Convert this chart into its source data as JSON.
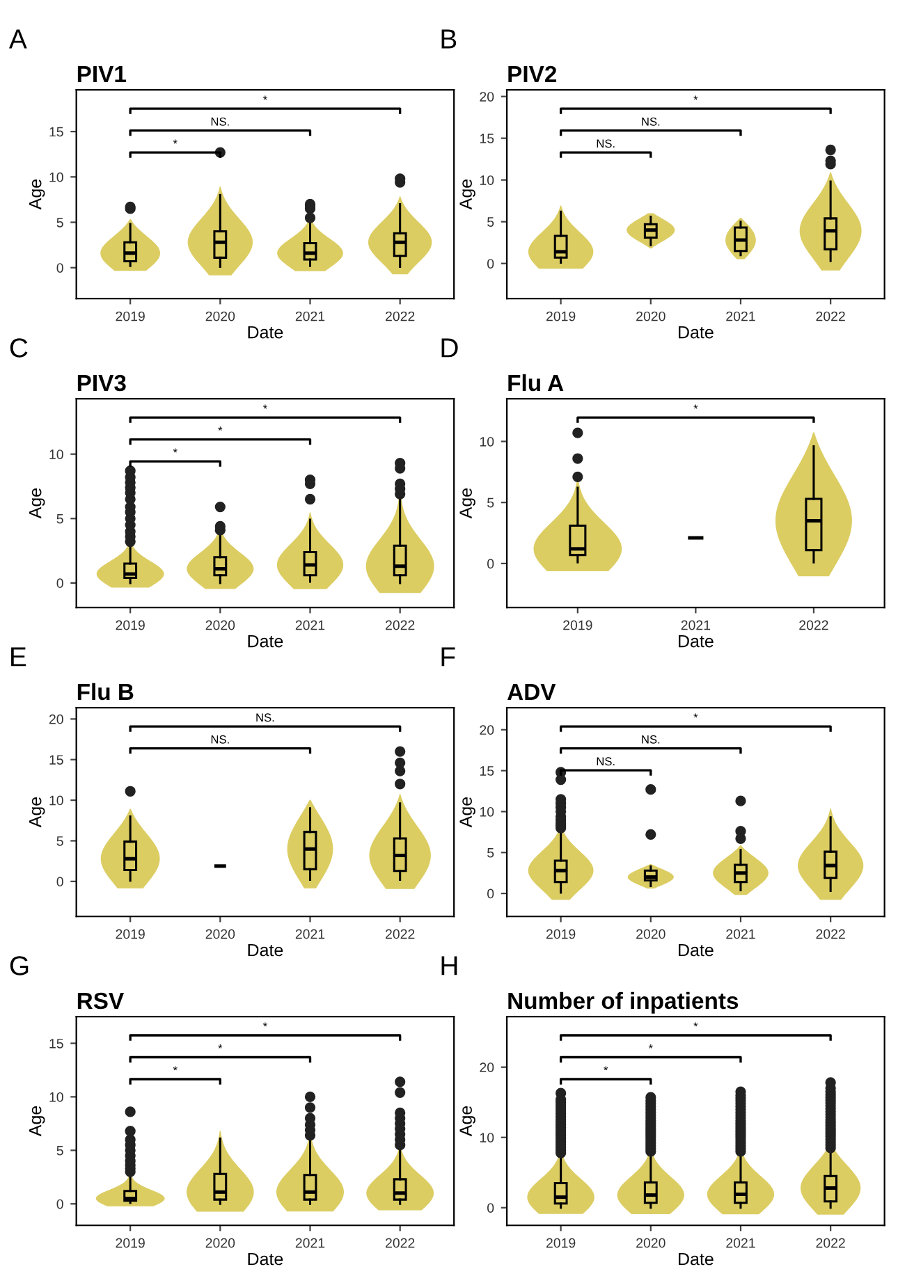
{
  "chart_data": [
    {
      "type": "box",
      "title": "PIV1",
      "xlabel": "Date",
      "ylabel": "Age",
      "categories": [
        "2019",
        "2020",
        "2021",
        "2022"
      ],
      "ylim": [
        -3.4,
        19.6
      ],
      "yticks": [
        0,
        5,
        10,
        15
      ],
      "grid": false,
      "color": "#dccd63",
      "boxes": [
        {
          "low": 0.2,
          "q1": 0.7,
          "median": 1.6,
          "q3": 2.8,
          "high": 4.8,
          "outliers": [
            6.5,
            6.7
          ]
        },
        {
          "low": 0.1,
          "q1": 1.1,
          "median": 2.8,
          "q3": 4.0,
          "high": 8.0,
          "outliers": [
            12.7
          ]
        },
        {
          "low": 0.2,
          "q1": 0.9,
          "median": 1.6,
          "q3": 2.7,
          "high": 5.0,
          "outliers": [
            5.5,
            6.5,
            6.8,
            7.0
          ]
        },
        {
          "low": 0.1,
          "q1": 1.3,
          "median": 2.8,
          "q3": 3.8,
          "high": 7.0,
          "outliers": [
            9.4,
            9.8
          ]
        }
      ],
      "annotations": [
        "A",
        "*",
        "NS.",
        "*"
      ]
    },
    {
      "type": "box",
      "title": "PIV2",
      "xlabel": "Date",
      "ylabel": "Age",
      "categories": [
        "2019",
        "2020",
        "2021",
        "2022"
      ],
      "ylim": [
        -4.2,
        20.8
      ],
      "yticks": [
        0,
        5,
        10,
        15,
        20
      ],
      "grid": false,
      "color": "#dccd63",
      "boxes": [
        {
          "low": 0.1,
          "q1": 0.7,
          "median": 1.4,
          "q3": 3.3,
          "high": 6.2
        },
        {
          "low": 2.2,
          "q1": 3.1,
          "median": 4.0,
          "q3": 4.7,
          "high": 5.6
        },
        {
          "low": 1.0,
          "q1": 1.5,
          "median": 2.8,
          "q3": 4.3,
          "high": 5.0
        },
        {
          "low": 0.3,
          "q1": 1.7,
          "median": 3.9,
          "q3": 5.4,
          "high": 9.8,
          "outliers": [
            11.9,
            12.3,
            13.6
          ]
        }
      ],
      "annotations": [
        "B",
        "NS.",
        "NS.",
        "*"
      ]
    },
    {
      "type": "box",
      "title": "PIV3",
      "xlabel": "Date",
      "ylabel": "Age",
      "categories": [
        "2019",
        "2020",
        "2021",
        "2022"
      ],
      "ylim": [
        -1.9,
        14.3
      ],
      "yticks": [
        0,
        5,
        10
      ],
      "grid": false,
      "color": "#dccd63",
      "boxes": [
        {
          "low": 0.0,
          "q1": 0.4,
          "median": 0.7,
          "q3": 1.5,
          "high": 3.0,
          "outliers": [
            3.2,
            3.6,
            4.0,
            4.5,
            5.0,
            5.5,
            5.9,
            6.5,
            7.0,
            7.4,
            7.8,
            8.2,
            8.7
          ]
        },
        {
          "low": 0.0,
          "q1": 0.6,
          "median": 1.1,
          "q3": 2.0,
          "high": 3.9,
          "outliers": [
            4.1,
            4.4,
            5.9
          ]
        },
        {
          "low": 0.1,
          "q1": 0.6,
          "median": 1.4,
          "q3": 2.4,
          "high": 4.9,
          "outliers": [
            6.5,
            7.7,
            8.0
          ]
        },
        {
          "low": 0.0,
          "q1": 0.6,
          "median": 1.3,
          "q3": 2.9,
          "high": 6.5,
          "outliers": [
            6.9,
            7.3,
            7.7,
            8.9,
            9.3
          ]
        }
      ],
      "annotations": [
        "C",
        "*",
        "*",
        "*"
      ]
    },
    {
      "type": "box",
      "title": "Flu A",
      "xlabel": "Date",
      "ylabel": "Age",
      "categories": [
        "2019",
        "2021",
        "2022"
      ],
      "ylim": [
        -3.6,
        13.5
      ],
      "yticks": [
        0,
        5,
        10
      ],
      "grid": false,
      "color": "#dccd63",
      "boxes": [
        {
          "low": 0.1,
          "q1": 0.7,
          "median": 1.2,
          "q3": 3.1,
          "high": 6.2,
          "outliers": [
            7.1,
            8.6,
            10.7
          ]
        },
        {
          "low": 2.1,
          "q1": 2.1,
          "median": 2.1,
          "q3": 2.1,
          "high": 2.1
        },
        {
          "low": 0.1,
          "q1": 1.1,
          "median": 3.5,
          "q3": 5.3,
          "high": 9.6
        }
      ],
      "annotations": [
        "D",
        "*"
      ]
    },
    {
      "type": "box",
      "title": "Flu B",
      "xlabel": "Date",
      "ylabel": "Age",
      "categories": [
        "2019",
        "2020",
        "2021",
        "2022"
      ],
      "ylim": [
        -4.3,
        21.4
      ],
      "yticks": [
        0,
        5,
        10,
        15,
        20
      ],
      "grid": false,
      "color": "#dccd63",
      "boxes": [
        {
          "low": 0.1,
          "q1": 1.4,
          "median": 2.8,
          "q3": 4.9,
          "high": 8.0,
          "outliers": [
            11.1
          ]
        },
        {
          "low": 1.9,
          "q1": 1.9,
          "median": 1.9,
          "q3": 1.9,
          "high": 1.9
        },
        {
          "low": 0.2,
          "q1": 1.5,
          "median": 4.0,
          "q3": 6.1,
          "high": 9.0
        },
        {
          "low": 0.2,
          "q1": 1.3,
          "median": 3.2,
          "q3": 5.3,
          "high": 9.6,
          "outliers": [
            12.0,
            13.6,
            14.6,
            16.0
          ]
        }
      ],
      "annotations": [
        "E",
        "NS.",
        "NS."
      ]
    },
    {
      "type": "box",
      "title": "ADV",
      "xlabel": "Date",
      "ylabel": "Age",
      "categories": [
        "2019",
        "2020",
        "2021",
        "2022"
      ],
      "ylim": [
        -2.8,
        22.7
      ],
      "yticks": [
        0,
        5,
        10,
        15,
        20
      ],
      "grid": false,
      "color": "#dccd63",
      "boxes": [
        {
          "low": 0.1,
          "q1": 1.4,
          "median": 2.8,
          "q3": 4.0,
          "high": 7.5,
          "outliers": [
            8.0,
            8.3,
            8.6,
            9.0,
            9.4,
            10.0,
            10.5,
            11.0,
            11.5,
            13.9,
            14.8
          ]
        },
        {
          "low": 0.9,
          "q1": 1.6,
          "median": 2.0,
          "q3": 2.8,
          "high": 3.3,
          "outliers": [
            7.2,
            12.7
          ]
        },
        {
          "low": 0.4,
          "q1": 1.4,
          "median": 2.5,
          "q3": 3.5,
          "high": 5.3,
          "outliers": [
            6.7,
            7.6,
            11.3
          ]
        },
        {
          "low": 0.3,
          "q1": 1.9,
          "median": 3.4,
          "q3": 5.1,
          "high": 9.3
        }
      ],
      "annotations": [
        "F",
        "NS.",
        "NS.",
        "*"
      ]
    },
    {
      "type": "box",
      "title": "RSV",
      "xlabel": "Date",
      "ylabel": "Age",
      "categories": [
        "2019",
        "2020",
        "2021",
        "2022"
      ],
      "ylim": [
        -2.0,
        17.5
      ],
      "yticks": [
        0,
        5,
        10,
        15
      ],
      "grid": false,
      "color": "#dccd63",
      "boxes": [
        {
          "low": 0.1,
          "q1": 0.3,
          "median": 0.5,
          "q3": 1.2,
          "high": 2.8,
          "outliers": [
            3.0,
            3.3,
            3.6,
            4.0,
            4.5,
            5.0,
            5.5,
            6.0,
            6.8,
            8.6
          ]
        },
        {
          "low": 0.0,
          "q1": 0.4,
          "median": 1.1,
          "q3": 2.8,
          "high": 6.1
        },
        {
          "low": 0.0,
          "q1": 0.4,
          "median": 1.1,
          "q3": 2.7,
          "high": 6.0,
          "outliers": [
            6.4,
            6.9,
            7.4,
            8.0,
            9.0,
            10.0
          ]
        },
        {
          "low": 0.0,
          "q1": 0.4,
          "median": 1.0,
          "q3": 2.3,
          "high": 5.0,
          "outliers": [
            5.5,
            6.0,
            6.5,
            7.0,
            7.5,
            8.0,
            8.5,
            10.4,
            11.4
          ]
        }
      ],
      "annotations": [
        "G",
        "*",
        "*",
        "*"
      ]
    },
    {
      "type": "box",
      "title": "Number of inpatients",
      "xlabel": "Date",
      "ylabel": "Age",
      "categories": [
        "2019",
        "2020",
        "2021",
        "2022"
      ],
      "ylim": [
        -2.5,
        27.2
      ],
      "yticks": [
        0,
        10,
        20
      ],
      "grid": false,
      "color": "#dccd63",
      "boxes": [
        {
          "low": 0.0,
          "q1": 0.6,
          "median": 1.5,
          "q3": 3.5,
          "high": 7.5,
          "outliers": [
            7.8,
            8.2,
            8.6,
            9.0,
            9.4,
            9.8,
            10.2,
            10.6,
            11.0,
            11.4,
            11.8,
            12.2,
            12.6,
            13.0,
            13.4,
            13.8,
            14.2,
            14.6,
            15.0,
            15.4,
            16.3
          ]
        },
        {
          "low": 0.0,
          "q1": 0.7,
          "median": 1.8,
          "q3": 3.6,
          "high": 7.7,
          "outliers": [
            8.0,
            8.4,
            8.8,
            9.2,
            9.6,
            10.0,
            10.4,
            10.8,
            11.2,
            11.6,
            12.0,
            12.4,
            12.8,
            13.2,
            13.6,
            14.0,
            14.4,
            14.8,
            15.2,
            15.7
          ]
        },
        {
          "low": 0.0,
          "q1": 0.7,
          "median": 1.9,
          "q3": 3.6,
          "high": 7.8,
          "outliers": [
            8.0,
            8.4,
            8.8,
            9.2,
            9.6,
            10.0,
            10.4,
            10.8,
            11.2,
            11.6,
            12.0,
            12.4,
            12.8,
            13.2,
            13.6,
            14.0,
            14.4,
            14.8,
            15.2,
            15.6,
            16.0,
            16.5
          ]
        },
        {
          "low": 0.0,
          "q1": 0.9,
          "median": 2.8,
          "q3": 4.5,
          "high": 8.3,
          "outliers": [
            8.5,
            8.9,
            9.3,
            9.7,
            10.1,
            10.5,
            10.9,
            11.3,
            11.7,
            12.1,
            12.5,
            12.9,
            13.3,
            13.7,
            14.1,
            14.5,
            14.9,
            15.3,
            15.7,
            16.1,
            16.5,
            17.0,
            17.8
          ]
        }
      ],
      "annotations": [
        "H",
        "*",
        "*",
        "*"
      ]
    }
  ]
}
